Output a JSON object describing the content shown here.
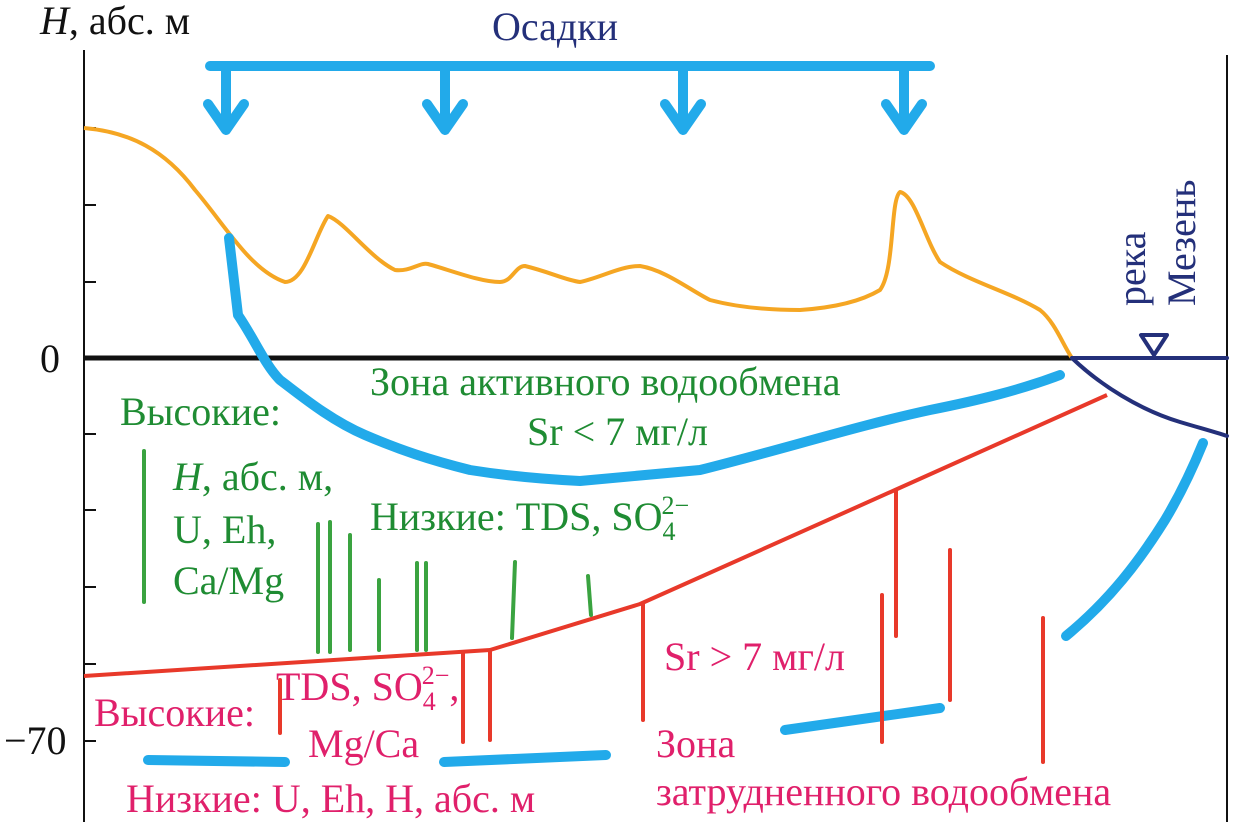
{
  "axis": {
    "y_label_var": "H",
    "y_label_unit": ", абс. м",
    "tick_zero": "0",
    "tick_bottom": "−70"
  },
  "precipitation": {
    "label": "Осадки"
  },
  "river": {
    "line1": "река",
    "line2": "Мезень"
  },
  "active_zone": {
    "title": "Зона активного водообмена",
    "sr": "Sr < 7 мг/л",
    "high_label": "Высокие:",
    "high_items": {
      "h_var": "H",
      "h_unit": ", абс. м,",
      "u_eh": "U, Eh,",
      "ca_mg": "Ca/Mg"
    },
    "low_prefix": "Низкие: TDS, SO",
    "low_sub": "4",
    "low_sup": "2−"
  },
  "slow_zone": {
    "high_label": "Высокие:",
    "high_prefix": "TDS, SO",
    "high_sub": "4",
    "high_sup": "2−",
    "high_suffix": ",",
    "high_line2": "Mg/Ca",
    "low": "Низкие: U, Eh, H, абс. м",
    "sr": "Sr > 7 мг/л",
    "title_line1": "Зона",
    "title_line2": "затрудненного водообмена"
  },
  "colors": {
    "surface": "#f5a623",
    "flow": "#22aaea",
    "boundary": "#e8392a",
    "river": "#24307a",
    "green_text": "#1f8c33",
    "pink_text": "#e0206b",
    "green_marks": "#3aa340",
    "axis": "#111111"
  }
}
